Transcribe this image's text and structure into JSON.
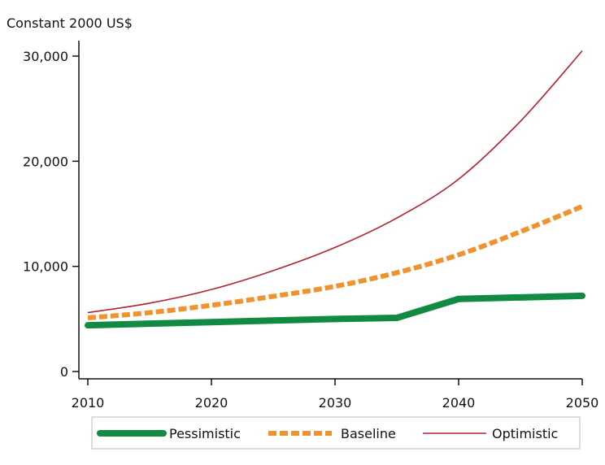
{
  "chart_data": {
    "type": "line",
    "title": "",
    "xlabel": "",
    "ylabel": "Constant 2000 US$",
    "xlim": [
      2010,
      2050
    ],
    "ylim": [
      0,
      30000
    ],
    "x_ticks": [
      2010,
      2020,
      2030,
      2040,
      2050
    ],
    "y_ticks": [
      0,
      10000,
      20000,
      30000
    ],
    "x_tick_labels": [
      "2010",
      "2020",
      "2030",
      "2040",
      "2050"
    ],
    "y_tick_labels": [
      "0",
      "10,000",
      "20,000",
      "30,000"
    ],
    "grid": false,
    "legend_position": "bottom",
    "x": [
      2010,
      2015,
      2020,
      2025,
      2030,
      2035,
      2040,
      2045,
      2050
    ],
    "series": [
      {
        "name": "Pessimistic",
        "color": "#138a44",
        "style": "thick-solid",
        "values": [
          4400,
          4550,
          4700,
          4850,
          5000,
          5100,
          6900,
          7050,
          7200
        ]
      },
      {
        "name": "Baseline",
        "color": "#f0922e",
        "style": "dashed",
        "values": [
          5100,
          5600,
          6300,
          7150,
          8100,
          9400,
          11100,
          13300,
          15700
        ]
      },
      {
        "name": "Optimistic",
        "color": "#b22234",
        "style": "thin-solid",
        "values": [
          5600,
          6500,
          7800,
          9600,
          11800,
          14600,
          18300,
          23800,
          30500
        ]
      }
    ]
  }
}
